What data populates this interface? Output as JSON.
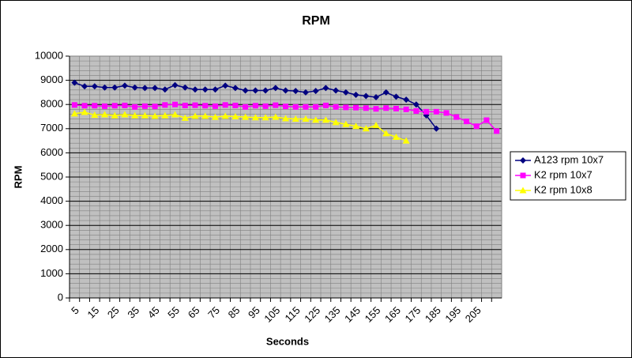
{
  "chart_data": {
    "type": "line",
    "title": "RPM",
    "x_label": "Seconds",
    "y_label": "RPM",
    "categories": [
      5,
      null,
      15,
      null,
      25,
      null,
      35,
      null,
      45,
      null,
      55,
      null,
      65,
      null,
      75,
      null,
      85,
      null,
      95,
      null,
      105,
      null,
      115,
      null,
      125,
      null,
      135,
      null,
      145,
      null,
      155,
      null,
      165,
      null,
      175,
      null,
      185,
      null,
      195,
      null,
      205,
      null,
      null
    ],
    "ylim": [
      0,
      10000
    ],
    "yticks": [
      0,
      1000,
      2000,
      3000,
      4000,
      5000,
      6000,
      7000,
      8000,
      9000,
      10000
    ],
    "grid": true,
    "minor_grid": true,
    "legend": "right",
    "series": [
      {
        "name": "A123 rpm 10x7",
        "color": "#000080",
        "marker": "diamond",
        "values": [
          8900,
          8750,
          8750,
          8700,
          8700,
          8780,
          8700,
          8680,
          8680,
          8620,
          8800,
          8700,
          8620,
          8620,
          8620,
          8780,
          8680,
          8580,
          8580,
          8580,
          8680,
          8580,
          8560,
          8500,
          8560,
          8680,
          8580,
          8500,
          8400,
          8350,
          8300,
          8500,
          8320,
          8200,
          8000,
          7550,
          7000,
          null,
          null,
          null,
          null,
          null,
          null
        ]
      },
      {
        "name": "K2 rpm 10x7",
        "color": "#ff00ff",
        "marker": "square",
        "values": [
          7980,
          7950,
          7950,
          7930,
          7950,
          7960,
          7900,
          7930,
          7920,
          7980,
          8000,
          7960,
          7970,
          7950,
          7930,
          7980,
          7960,
          7900,
          7950,
          7930,
          7970,
          7920,
          7900,
          7900,
          7900,
          7960,
          7900,
          7880,
          7870,
          7850,
          7820,
          7850,
          7830,
          7800,
          7730,
          7700,
          7700,
          7650,
          7480,
          7300,
          7100,
          7350,
          6900
        ]
      },
      {
        "name": "K2 rpm 10x8",
        "color": "#ffff00",
        "marker": "triangle",
        "values": [
          7620,
          7680,
          7560,
          7580,
          7540,
          7580,
          7540,
          7540,
          7520,
          7540,
          7580,
          7440,
          7520,
          7520,
          7480,
          7520,
          7500,
          7480,
          7460,
          7460,
          7480,
          7420,
          7400,
          7400,
          7360,
          7360,
          7260,
          7180,
          7100,
          7000,
          7140,
          6800,
          6650,
          6500,
          null,
          null,
          null,
          null,
          null,
          null,
          null,
          null,
          null
        ]
      }
    ]
  }
}
